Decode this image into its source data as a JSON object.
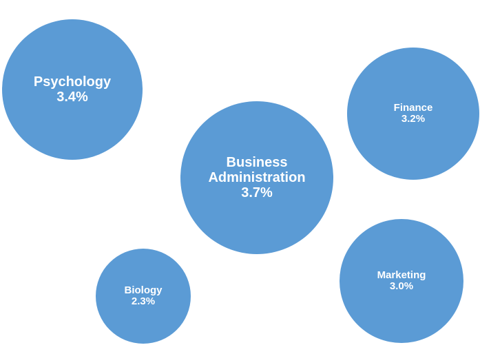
{
  "chart_data": {
    "type": "bubble",
    "categories": [
      "Psychology",
      "Business Administration",
      "Finance",
      "Biology",
      "Marketing"
    ],
    "values": [
      3.4,
      3.7,
      3.2,
      2.3,
      3.0
    ],
    "value_labels": [
      "3.4%",
      "3.7%",
      "3.2%",
      "2.3%",
      "3.0%"
    ],
    "color": "#5b9bd5"
  }
}
